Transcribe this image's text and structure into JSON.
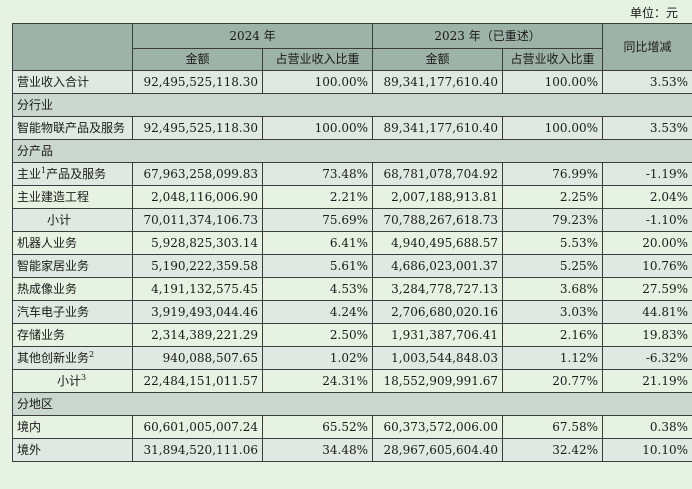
{
  "unit_label": "单位：元",
  "header": {
    "col_2024": "2024 年",
    "col_2023": "2023 年（已重述）",
    "col_yoy": "同比增减",
    "amount": "金额",
    "ratio": "占营业收入比重"
  },
  "rows": [
    {
      "type": "data",
      "label": "营业收入合计",
      "sup": "",
      "a24": "92,495,525,118.30",
      "r24": "100.00%",
      "a23": "89,341,177,610.40",
      "r23": "100.00%",
      "yoy": "3.53%"
    },
    {
      "type": "section",
      "label": "分行业"
    },
    {
      "type": "data",
      "label": "智能物联产品及服务",
      "sup": "",
      "a24": "92,495,525,118.30",
      "r24": "100.00%",
      "a23": "89,341,177,610.40",
      "r23": "100.00%",
      "yoy": "3.53%"
    },
    {
      "type": "section",
      "label": "分产品"
    },
    {
      "type": "data",
      "label": "主业",
      "sup": "1",
      "label_after": "产品及服务",
      "a24": "67,963,258,099.83",
      "r24": "73.48%",
      "a23": "68,781,078,704.92",
      "r23": "76.99%",
      "yoy": "-1.19%"
    },
    {
      "type": "data",
      "label": "主业建造工程",
      "sup": "",
      "a24": "2,048,116,006.90",
      "r24": "2.21%",
      "a23": "2,007,188,913.81",
      "r23": "2.25%",
      "yoy": "2.04%"
    },
    {
      "type": "subtotal",
      "label": "小计",
      "sup": "",
      "a24": "70,011,374,106.73",
      "r24": "75.69%",
      "a23": "70,788,267,618.73",
      "r23": "79.23%",
      "yoy": "-1.10%"
    },
    {
      "type": "data",
      "label": "机器人业务",
      "sup": "",
      "a24": "5,928,825,303.14",
      "r24": "6.41%",
      "a23": "4,940,495,688.57",
      "r23": "5.53%",
      "yoy": "20.00%"
    },
    {
      "type": "data",
      "label": "智能家居业务",
      "sup": "",
      "a24": "5,190,222,359.58",
      "r24": "5.61%",
      "a23": "4,686,023,001.37",
      "r23": "5.25%",
      "yoy": "10.76%"
    },
    {
      "type": "data",
      "label": "热成像业务",
      "sup": "",
      "a24": "4,191,132,575.45",
      "r24": "4.53%",
      "a23": "3,284,778,727.13",
      "r23": "3.68%",
      "yoy": "27.59%"
    },
    {
      "type": "data",
      "label": "汽车电子业务",
      "sup": "",
      "a24": "3,919,493,044.46",
      "r24": "4.24%",
      "a23": "2,706,680,020.16",
      "r23": "3.03%",
      "yoy": "44.81%"
    },
    {
      "type": "data",
      "label": "存储业务",
      "sup": "",
      "a24": "2,314,389,221.29",
      "r24": "2.50%",
      "a23": "1,931,387,706.41",
      "r23": "2.16%",
      "yoy": "19.83%"
    },
    {
      "type": "data",
      "label": "其他创新业务",
      "sup": "2",
      "a24": "940,088,507.65",
      "r24": "1.02%",
      "a23": "1,003,544,848.03",
      "r23": "1.12%",
      "yoy": "-6.32%"
    },
    {
      "type": "subtotal2",
      "label": "小计",
      "sup": "3",
      "a24": "22,484,151,011.57",
      "r24": "24.31%",
      "a23": "18,552,909,991.67",
      "r23": "20.77%",
      "yoy": "21.19%"
    },
    {
      "type": "section",
      "label": "分地区"
    },
    {
      "type": "data",
      "label": "境内",
      "sup": "",
      "a24": "60,601,005,007.24",
      "r24": "65.52%",
      "a23": "60,373,572,006.00",
      "r23": "67.58%",
      "yoy": "0.38%"
    },
    {
      "type": "data",
      "label": "境外",
      "sup": "",
      "a24": "31,894,520,111.06",
      "r24": "34.48%",
      "a23": "28,967,605,604.40",
      "r23": "32.42%",
      "yoy": "10.10%"
    }
  ]
}
